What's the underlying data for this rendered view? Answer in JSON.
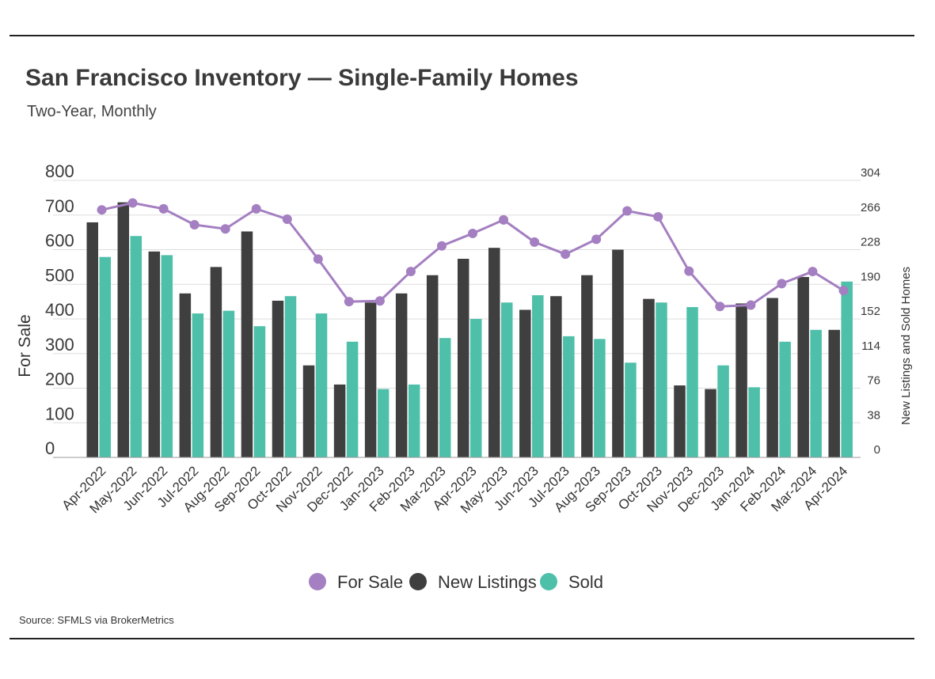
{
  "header": {
    "title": "San Francisco Inventory — Single-Family Homes",
    "subtitle": "Two-Year, Monthly"
  },
  "footer": {
    "source": "Source:  SFMLS via BrokerMetrics"
  },
  "colors": {
    "for_sale": "#a47fc1",
    "new_listings": "#3f3f3f",
    "sold": "#4ebfa9",
    "grid": "#dddddd",
    "axis": "#999999"
  },
  "chart_data": {
    "type": "bar",
    "categories": [
      "Apr-2022",
      "May-2022",
      "Jun-2022",
      "Jul-2022",
      "Aug-2022",
      "Sep-2022",
      "Oct-2022",
      "Nov-2022",
      "Dec-2022",
      "Jan-2023",
      "Feb-2023",
      "Mar-2023",
      "Apr-2023",
      "May-2023",
      "Jun-2023",
      "Jul-2023",
      "Aug-2023",
      "Sep-2023",
      "Oct-2023",
      "Nov-2023",
      "Dec-2023",
      "Jan-2024",
      "Feb-2024",
      "Mar-2024",
      "Apr-2024"
    ],
    "series": [
      {
        "name": "For Sale",
        "type": "line",
        "axis": "left",
        "values": [
          715,
          735,
          718,
          672,
          660,
          718,
          688,
          573,
          450,
          452,
          537,
          611,
          647,
          686,
          622,
          587,
          630,
          712,
          695,
          538,
          436,
          440,
          502,
          537,
          482
        ]
      },
      {
        "name": "New Listings",
        "type": "bar",
        "axis": "right",
        "values": [
          258,
          280,
          226,
          180,
          209,
          248,
          172,
          101,
          80,
          170,
          180,
          200,
          218,
          230,
          162,
          177,
          200,
          228,
          174,
          79,
          75,
          169,
          175,
          198,
          140
        ]
      },
      {
        "name": "Sold",
        "type": "bar",
        "axis": "right",
        "values": [
          220,
          243,
          222,
          158,
          161,
          144,
          177,
          158,
          127,
          75,
          80,
          131,
          152,
          170,
          178,
          133,
          130,
          104,
          170,
          165,
          101,
          77,
          127,
          140,
          193
        ]
      }
    ],
    "y_left": {
      "label": "For Sale",
      "ticks": [
        0,
        100,
        200,
        300,
        400,
        500,
        600,
        700,
        800
      ],
      "range": [
        0,
        800
      ]
    },
    "y_right": {
      "label": "New Listings and Sold Homes",
      "ticks": [
        0,
        38,
        76,
        114,
        152,
        190,
        228,
        266,
        304
      ],
      "range": [
        0,
        304
      ]
    },
    "legend": {
      "placement": "bottom",
      "items": [
        "For Sale",
        "New Listings",
        "Sold"
      ]
    },
    "grid": true
  }
}
